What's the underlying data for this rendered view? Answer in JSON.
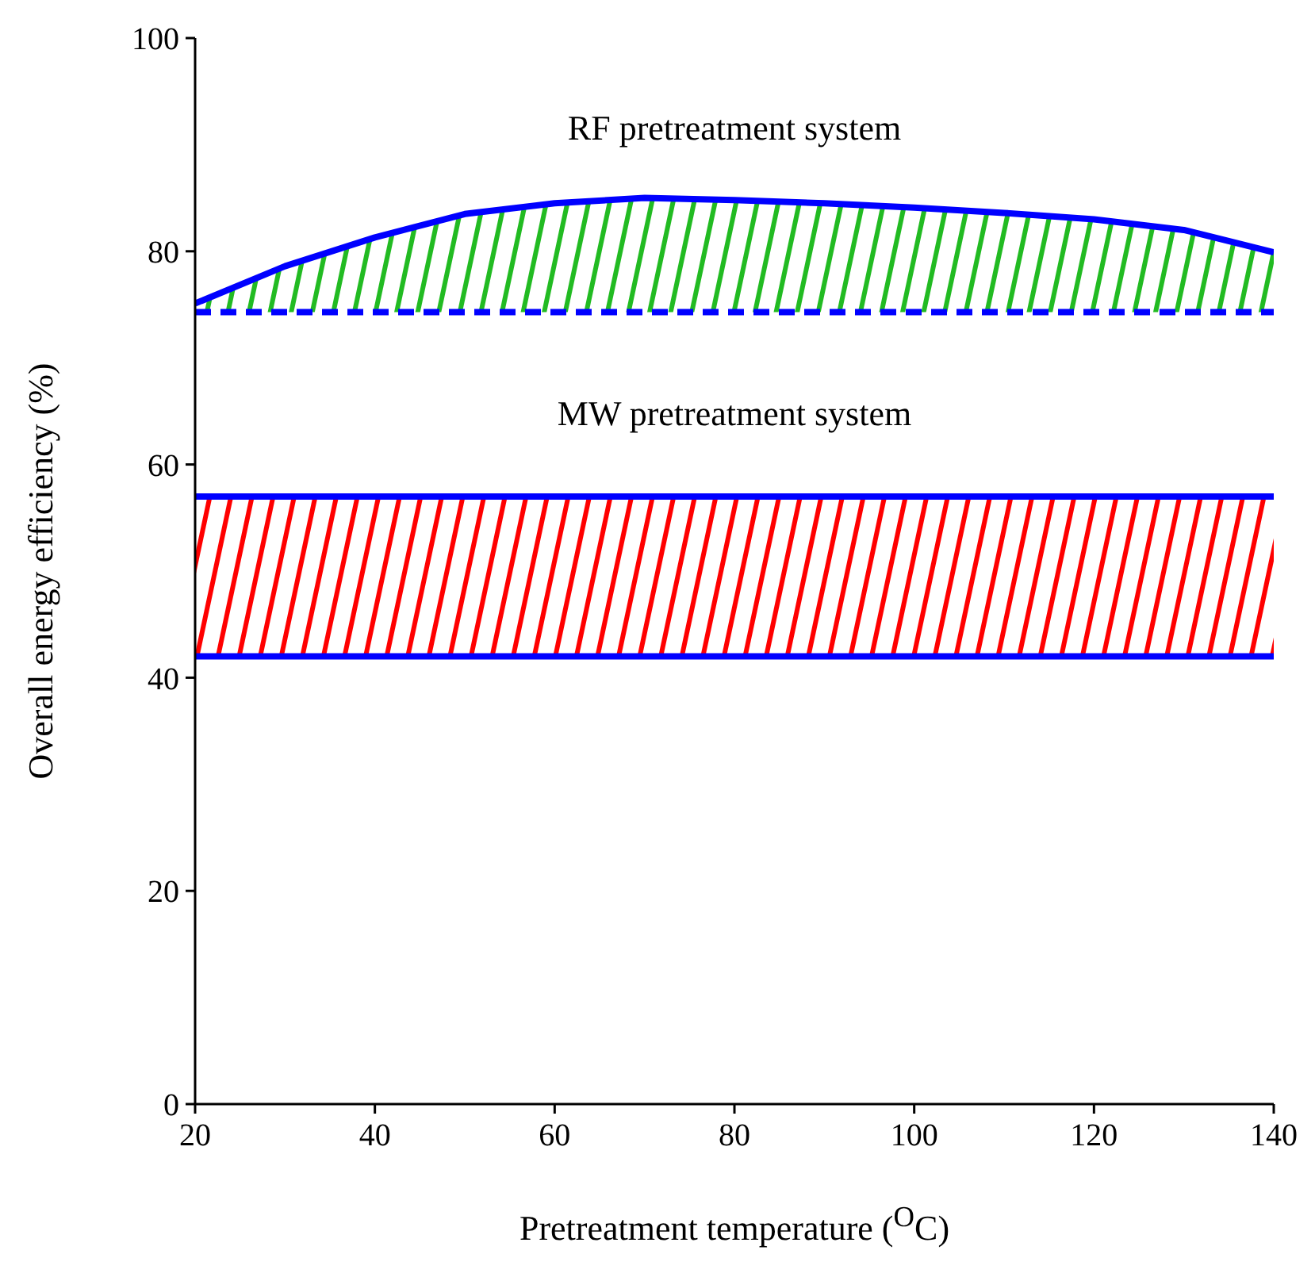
{
  "chart_data": {
    "type": "line",
    "xlabel": "Pretreatment temperature ($^{O}$C)",
    "ylabel": "Overall energy efficiency (%)",
    "x": [
      20,
      30,
      40,
      50,
      60,
      70,
      80,
      90,
      100,
      110,
      120,
      130,
      140
    ],
    "series": [
      {
        "color": "#0000ff",
        "line_style": "dashed",
        "values": [
          74.3,
          74.3,
          74.3,
          74.3,
          74.3,
          74.3,
          74.3,
          74.3,
          74.3,
          74.3,
          74.3,
          74.3,
          74.3
        ]
      },
      {
        "color": "#0000ff",
        "values": [
          57,
          57,
          57,
          57,
          57,
          57,
          57,
          57,
          57,
          57,
          57,
          57,
          57
        ]
      },
      {
        "color": "#0000ff",
        "values": [
          42,
          42,
          42,
          42,
          42,
          42,
          42,
          42,
          42,
          42,
          42,
          42,
          42
        ]
      },
      {
        "color": "#0000ff",
        "values": [
          75.1,
          78.6,
          81.3,
          83.5,
          84.5,
          85,
          84.8,
          84.5,
          84.1,
          83.6,
          83,
          82,
          79.9
        ],
        "lower": [
          74.3,
          74.3,
          74.3,
          74.3,
          74.3,
          74.3,
          74.3,
          74.3,
          74.3,
          74.3,
          74.3,
          74.3,
          74.3
        ],
        "upper": [
          75.1,
          78.6,
          81.3,
          83.5,
          84.5,
          85,
          84.8,
          84.5,
          84.1,
          83.6,
          83,
          82,
          79.9
        ]
      }
    ],
    "bands": [
      {
        "axis": "y",
        "from": 42,
        "to": 57,
        "color": "#ff0000"
      }
    ],
    "annotations": [
      "RF pretreatment system",
      "MW pretreatment system"
    ],
    "xlim": [
      20,
      140
    ],
    "xticks": [
      20,
      40,
      60,
      80,
      100,
      120,
      140
    ],
    "ylim": [
      0,
      100
    ],
    "yticks": [
      0,
      20,
      40,
      60,
      80,
      100
    ],
    "grid": false,
    "legend": false,
    "marker": "none"
  }
}
